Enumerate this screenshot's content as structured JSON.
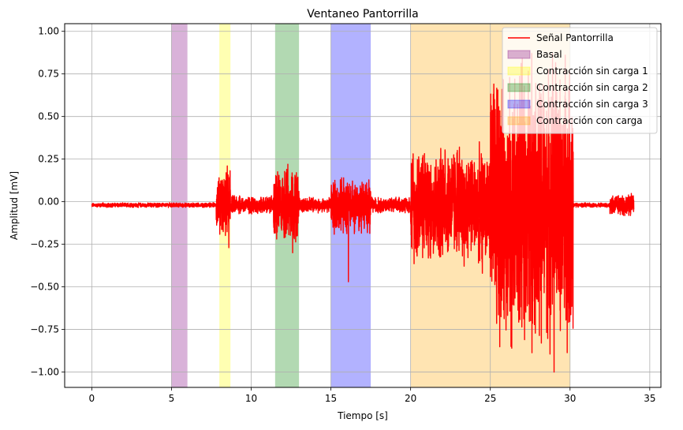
{
  "chart_data": {
    "type": "line",
    "title": "Ventaneo Pantorrilla",
    "xlabel": "Tiempo [s]",
    "ylabel": "Amplitud [mV]",
    "xlim": [
      -1.7,
      35.7
    ],
    "ylim": [
      -1.09,
      1.045
    ],
    "xticks": [
      0,
      5,
      10,
      15,
      20,
      25,
      30,
      35
    ],
    "xtick_labels": [
      "0",
      "5",
      "10",
      "15",
      "20",
      "25",
      "30",
      "35"
    ],
    "yticks": [
      1.0,
      0.75,
      0.5,
      0.25,
      0.0,
      -0.25,
      -0.5,
      -0.75,
      -1.0
    ],
    "ytick_labels": [
      "1.00",
      "0.75",
      "0.50",
      "0.25",
      "0.00",
      "−0.25",
      "−0.50",
      "−0.75",
      "−1.00"
    ],
    "grid": true,
    "legend_position": "top-right",
    "series": [
      {
        "name": "Señal Pantorrilla",
        "color": "#ff0000",
        "baseline": -0.02,
        "envelope": [
          {
            "x": [
              0,
              7.8
            ],
            "amp": 0.015
          },
          {
            "x": [
              7.8,
              8.7
            ],
            "amp": 0.22
          },
          {
            "x": [
              8.7,
              11.4
            ],
            "amp": 0.06
          },
          {
            "x": [
              11.4,
              13.0
            ],
            "amp": 0.24
          },
          {
            "x": [
              13.0,
              15.0
            ],
            "amp": 0.05
          },
          {
            "x": [
              15.0,
              17.5
            ],
            "amp": 0.18
          },
          {
            "x": [
              17.5,
              20.0
            ],
            "amp": 0.05
          },
          {
            "x": [
              20.0,
              25.0
            ],
            "amp": 0.38
          },
          {
            "x": [
              25.0,
              30.2
            ],
            "amp": 0.9
          },
          {
            "x": [
              30.2,
              32.5
            ],
            "amp": 0.015
          },
          {
            "x": [
              32.5,
              34.0
            ],
            "amp": 0.07
          }
        ],
        "peaks": [
          {
            "x": 8.5,
            "y": 0.21
          },
          {
            "x": 8.6,
            "y": -0.27
          },
          {
            "x": 12.3,
            "y": 0.22
          },
          {
            "x": 12.6,
            "y": -0.3
          },
          {
            "x": 15.8,
            "y": 0.14
          },
          {
            "x": 16.1,
            "y": -0.47
          },
          {
            "x": 20.4,
            "y": -0.31
          },
          {
            "x": 24.5,
            "y": -0.42
          },
          {
            "x": 26.3,
            "y": -0.85
          },
          {
            "x": 27.6,
            "y": 0.87
          },
          {
            "x": 28.2,
            "y": -0.83
          },
          {
            "x": 28.9,
            "y": 0.87
          },
          {
            "x": 29.0,
            "y": -1.0
          },
          {
            "x": 29.7,
            "y": 0.86
          }
        ]
      }
    ],
    "regions": [
      {
        "name": "Basal",
        "x": [
          5.0,
          6.0
        ],
        "color": "#800080",
        "alpha": 0.3
      },
      {
        "name": "Contracción sin carga 1",
        "x": [
          8.0,
          8.7
        ],
        "color": "#ffff00",
        "alpha": 0.3
      },
      {
        "name": "Contracción sin carga 2",
        "x": [
          11.5,
          13.0
        ],
        "color": "#008000",
        "alpha": 0.3
      },
      {
        "name": "Contracción sin carga 3",
        "x": [
          15.0,
          17.5
        ],
        "color": "#0000ff",
        "alpha": 0.3
      },
      {
        "name": "Contracción con carga",
        "x": [
          20.0,
          30.0
        ],
        "color": "#ffa500",
        "alpha": 0.3
      }
    ]
  }
}
